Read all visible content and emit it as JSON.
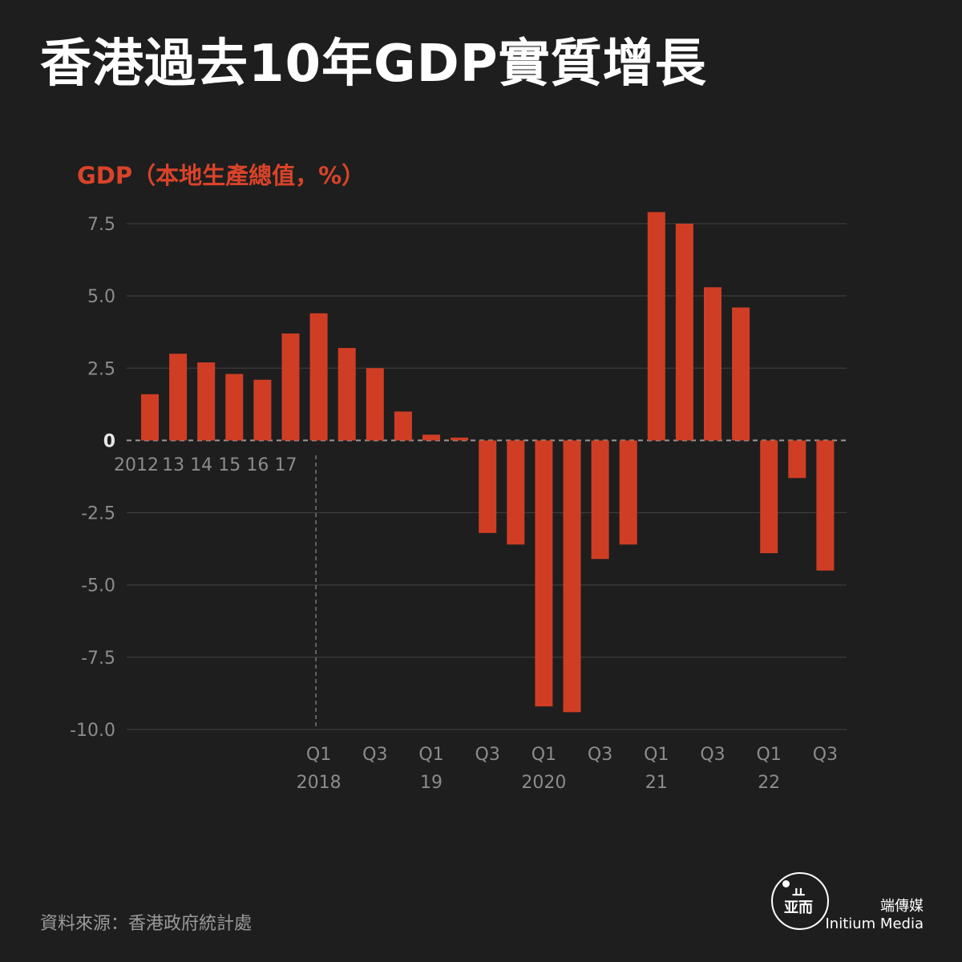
{
  "title": "香港過去10年GDP實質增長",
  "subtitle": "GDP（本地生產總值，%）",
  "source": "資料來源：香港政府統計處",
  "logo": {
    "icon": "initium-logo-icon",
    "name_cn": "端傳媒",
    "name_en": "Initium Media"
  },
  "colors": {
    "background": "#1e1e1e",
    "bar": "#cf3e24",
    "accent": "#d9432a",
    "grid": "#3c3c3c",
    "tick": "#8c8c8c"
  },
  "chart_data": {
    "type": "bar",
    "title": "香港過去10年GDP實質增長",
    "ylabel": "GDP（本地生產總值，%）",
    "xlabel": "",
    "ylim": [
      -10,
      7.5
    ],
    "grid": true,
    "y_ticks": [
      {
        "value": 7.5,
        "label": "7.5"
      },
      {
        "value": 5.0,
        "label": "5.0"
      },
      {
        "value": 2.5,
        "label": "2.5"
      },
      {
        "value": 0,
        "label": "0"
      },
      {
        "value": -2.5,
        "label": "-2.5"
      },
      {
        "value": -5.0,
        "label": "-5.0"
      },
      {
        "value": -7.5,
        "label": "-7.5"
      },
      {
        "value": -10.0,
        "label": "-10.0"
      }
    ],
    "categories": [
      "2012",
      "13",
      "14",
      "15",
      "16",
      "17",
      "2018 Q1",
      "2018 Q2",
      "2018 Q3",
      "2018 Q4",
      "2019 Q1",
      "2019 Q2",
      "2019 Q3",
      "2019 Q4",
      "2020 Q1",
      "2020 Q2",
      "2020 Q3",
      "2020 Q4",
      "2021 Q1",
      "2021 Q2",
      "2021 Q3",
      "2021 Q4",
      "2022 Q1",
      "2022 Q2",
      "2022 Q3"
    ],
    "values": [
      1.6,
      3.0,
      2.7,
      2.3,
      2.1,
      3.7,
      4.4,
      3.2,
      2.5,
      1.0,
      0.2,
      0.1,
      -3.2,
      -3.6,
      -9.2,
      -9.4,
      -4.1,
      -3.6,
      7.9,
      7.5,
      5.3,
      4.6,
      -3.9,
      -1.3,
      -4.5
    ],
    "annual_labels": [
      "2012",
      "13",
      "14",
      "15",
      "16",
      "17"
    ],
    "quarter_labels": [
      {
        "index": 6,
        "line1": "Q1",
        "line2": "2018"
      },
      {
        "index": 8,
        "line1": "Q3",
        "line2": ""
      },
      {
        "index": 10,
        "line1": "Q1",
        "line2": "19"
      },
      {
        "index": 12,
        "line1": "Q3",
        "line2": ""
      },
      {
        "index": 14,
        "line1": "Q1",
        "line2": "2020"
      },
      {
        "index": 16,
        "line1": "Q3",
        "line2": ""
      },
      {
        "index": 18,
        "line1": "Q1",
        "line2": "21"
      },
      {
        "index": 20,
        "line1": "Q3",
        "line2": ""
      },
      {
        "index": 22,
        "line1": "Q1",
        "line2": "22"
      },
      {
        "index": 24,
        "line1": "Q3",
        "line2": ""
      }
    ]
  }
}
